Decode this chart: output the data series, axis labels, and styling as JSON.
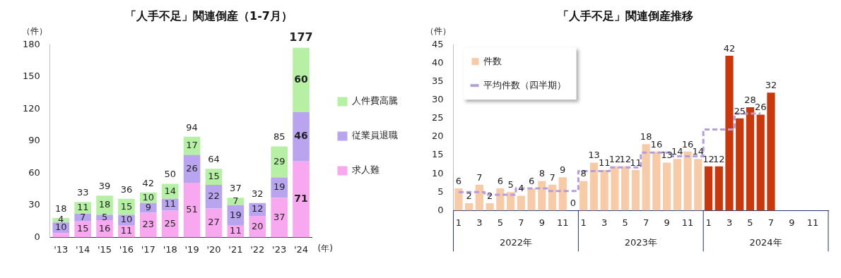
{
  "chart_data": [
    {
      "type": "bar",
      "title": "「人手不足」関連倒産（1-7月）",
      "ylabel": "（件）",
      "xlabel": "(年)",
      "stacked": true,
      "legend": "right",
      "grid": false,
      "categories": [
        "'13",
        "'14",
        "'15",
        "'16",
        "'17",
        "'18",
        "'19",
        "'20",
        "'21",
        "'22",
        "'23",
        "'24"
      ],
      "ylim": [
        0,
        180
      ],
      "yticks": [
        0,
        30,
        60,
        90,
        120,
        150,
        180
      ],
      "series": [
        {
          "name": "求人難",
          "color": "#f7a8ee",
          "values": [
            4,
            15,
            16,
            11,
            23,
            25,
            51,
            27,
            11,
            20,
            37,
            71
          ],
          "value_labels": [
            null,
            "15",
            "16",
            "11",
            "23",
            "25",
            "51",
            "27",
            "11",
            "20",
            "37",
            "71"
          ]
        },
        {
          "name": "従業員退職",
          "color": "#b9a4f0",
          "values": [
            10,
            7,
            5,
            10,
            9,
            11,
            26,
            22,
            19,
            12,
            19,
            46
          ],
          "value_labels": [
            "10",
            "7",
            "5",
            "10",
            "9",
            "11",
            "26",
            "22",
            "19",
            "12",
            "19",
            "46"
          ]
        },
        {
          "name": "人件費高騰",
          "color": "#b6f0a4",
          "values": [
            4,
            11,
            18,
            15,
            10,
            14,
            17,
            15,
            7,
            null,
            29,
            60
          ],
          "value_labels": [
            "4",
            "11",
            "18",
            "15",
            "10",
            "14",
            "17",
            "15",
            "7",
            null,
            "29",
            "60"
          ]
        }
      ],
      "totals": [
        "18",
        "33",
        "39",
        "36",
        "42",
        "50",
        "94",
        "64",
        "37",
        "32",
        "85",
        "177"
      ]
    },
    {
      "type": "bar",
      "title": "「人手不足」関連倒産推移",
      "ylabel": "（件）",
      "legend": "top left",
      "grid": false,
      "categories": [
        "1",
        null,
        "3",
        null,
        "5",
        null,
        "7",
        null,
        "9",
        null,
        "11",
        null,
        "1",
        null,
        "3",
        null,
        "5",
        null,
        "7",
        null,
        "9",
        null,
        "11",
        null,
        "1",
        null,
        "3",
        null,
        "5",
        null,
        "7",
        null,
        "9",
        null,
        "11",
        null
      ],
      "ylim": [
        0,
        45
      ],
      "yticks": [
        0,
        5,
        10,
        15,
        20,
        25,
        30,
        35,
        40,
        45
      ],
      "annotations": [
        "2022年",
        "2023年",
        "2024年"
      ],
      "series": [
        {
          "name": "件数",
          "color": "#f8cba8",
          "value_labels": [
            "6",
            "2",
            "7",
            "2",
            "6",
            "5",
            "4",
            "6",
            "8",
            "7",
            "9",
            "0",
            "8",
            "13",
            "11",
            "12",
            "12",
            "11",
            "18",
            "16",
            "13",
            "14",
            "16",
            "14",
            "12",
            "12",
            "42",
            "25",
            "28",
            "26",
            "32",
            null,
            null,
            null,
            null,
            null
          ],
          "colors": [
            "#f8cba8",
            "#f8cba8",
            "#f8cba8",
            "#f8cba8",
            "#f8cba8",
            "#f8cba8",
            "#f8cba8",
            "#f8cba8",
            "#f8cba8",
            "#f8cba8",
            "#f8cba8",
            "#f8cba8",
            "#f8cba8",
            "#f8cba8",
            "#f8cba8",
            "#f8cba8",
            "#f8cba8",
            "#f8cba8",
            "#f8cba8",
            "#f8cba8",
            "#f8cba8",
            "#f8cba8",
            "#f8cba8",
            "#f8cba8",
            "#c8380c",
            "#c8380c",
            "#c8380c",
            "#c8380c",
            "#c8380c",
            "#c8380c",
            "#c8380c",
            "#c8380c",
            "#c8380c",
            "#c8380c",
            "#c8380c",
            "#c8380c"
          ],
          "values": [
            6,
            2,
            7,
            2,
            6,
            5,
            4,
            6,
            8,
            7,
            9,
            0,
            8,
            13,
            11,
            12,
            12,
            11,
            18,
            16,
            13,
            14,
            16,
            14,
            12,
            12,
            42,
            25,
            28,
            26,
            32,
            null,
            null,
            null,
            null,
            null
          ]
        },
        {
          "name": "平均件数（四半期）",
          "type": "step",
          "color": "#b49ddc",
          "line_style": "dashed",
          "values": [
            5,
            5,
            5,
            4.3,
            4.3,
            4.3,
            6,
            6,
            6,
            5.3,
            5.3,
            5.3,
            10.7,
            10.7,
            10.7,
            11.7,
            11.7,
            11.7,
            15.7,
            15.7,
            15.7,
            14.7,
            14.7,
            14.7,
            22,
            22,
            22,
            26.3,
            26.3,
            26.3,
            null,
            null,
            null,
            null,
            null,
            null
          ]
        }
      ]
    }
  ]
}
